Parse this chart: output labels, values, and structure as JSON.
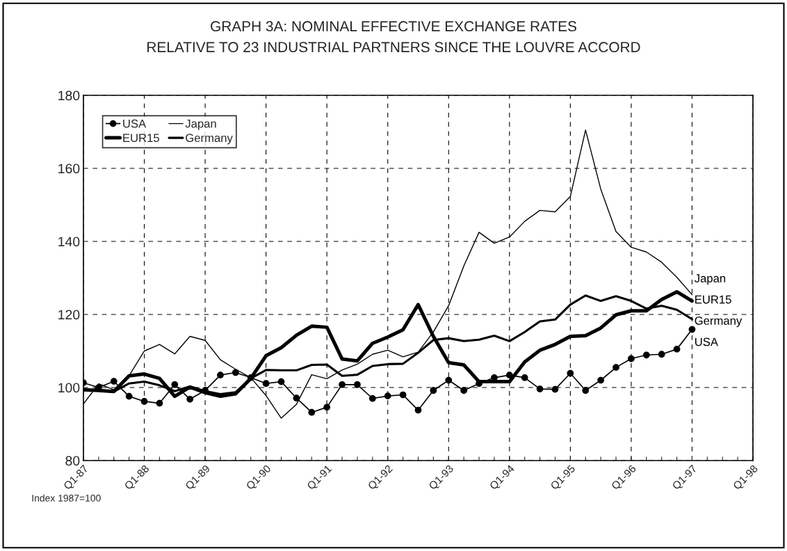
{
  "chart_data": {
    "type": "line",
    "title": "GRAPH 3A: NOMINAL EFFECTIVE EXCHANGE RATES\nRELATIVE TO 23 INDUSTRIAL PARTNERS SINCE THE LOUVRE ACCORD",
    "categories": [
      "Q1-87",
      null,
      null,
      null,
      "Q1-88",
      null,
      null,
      null,
      "Q1-89",
      null,
      null,
      null,
      "Q1-90",
      null,
      null,
      null,
      "Q1-91",
      null,
      null,
      null,
      "Q1-92",
      null,
      null,
      null,
      "Q1-93",
      null,
      null,
      null,
      "Q1-94",
      null,
      null,
      null,
      "Q1-95",
      null,
      null,
      null,
      "Q1-96",
      null,
      null,
      null,
      "Q1-97",
      null,
      null,
      null,
      "Q1-98"
    ],
    "series": [
      {
        "name": "USA",
        "color": "#000000",
        "marker": "circle",
        "values": [
          101.3,
          100.0,
          101.7,
          97.6,
          96.2,
          95.7,
          100.8,
          96.8,
          99.2,
          103.4,
          104.1,
          102.7,
          101.1,
          101.6,
          97.1,
          93.2,
          94.6,
          100.8,
          100.8,
          97.0,
          97.7,
          98.0,
          93.8,
          99.2,
          102.0,
          99.2,
          101.1,
          102.7,
          103.4,
          102.7,
          99.6,
          99.5,
          103.9,
          99.2,
          102.0,
          105.5,
          107.9,
          108.9,
          109.1,
          110.5,
          115.9,
          null,
          null,
          null,
          null
        ]
      },
      {
        "name": "EUR15",
        "color": "#000000",
        "marker": "none",
        "values": [
          99.4,
          99.2,
          98.9,
          103.2,
          103.7,
          102.5,
          97.6,
          100.1,
          98.6,
          97.6,
          98.3,
          102.5,
          108.7,
          110.9,
          114.3,
          116.8,
          116.5,
          107.8,
          107.3,
          112.1,
          113.8,
          115.8,
          122.7,
          114.0,
          106.8,
          106.2,
          101.6,
          101.6,
          101.6,
          107.0,
          110.2,
          111.8,
          114.0,
          114.2,
          116.3,
          119.9,
          121.0,
          121.0,
          124.1,
          126.2,
          123.7,
          null,
          null,
          null,
          null
        ]
      },
      {
        "name": "Japan",
        "color": "#000000",
        "marker": "none",
        "values": [
          95.5,
          101.0,
          99.4,
          103.2,
          110.0,
          111.8,
          109.2,
          114.0,
          112.9,
          107.6,
          105.0,
          102.7,
          97.8,
          91.6,
          95.4,
          103.5,
          102.4,
          104.8,
          106.4,
          109.1,
          110.2,
          108.4,
          109.7,
          115.2,
          122.4,
          133.3,
          142.5,
          139.5,
          141.2,
          145.5,
          148.5,
          148.1,
          152.3,
          170.5,
          154.3,
          142.7,
          138.4,
          137.1,
          134.3,
          130.2,
          125.4,
          null,
          null,
          null,
          null
        ]
      },
      {
        "name": "Germany",
        "color": "#000000",
        "marker": "none",
        "values": [
          99.4,
          99.2,
          98.9,
          101.1,
          101.6,
          100.6,
          99.0,
          100.3,
          99.0,
          98.2,
          98.7,
          102.5,
          104.8,
          104.7,
          104.7,
          106.2,
          106.3,
          103.2,
          103.5,
          105.9,
          106.4,
          106.5,
          109.5,
          113.0,
          113.5,
          112.7,
          113.1,
          114.2,
          112.7,
          115.2,
          118.1,
          118.6,
          122.7,
          125.2,
          123.7,
          125.0,
          123.7,
          121.6,
          122.4,
          121.3,
          118.7,
          null,
          null,
          null,
          null
        ]
      }
    ],
    "ylim": [
      80,
      180
    ],
    "yticks": [
      80,
      100,
      120,
      140,
      160,
      180
    ],
    "grid": true,
    "legend": "top left",
    "annotations": [
      "Index 1987=100"
    ]
  }
}
